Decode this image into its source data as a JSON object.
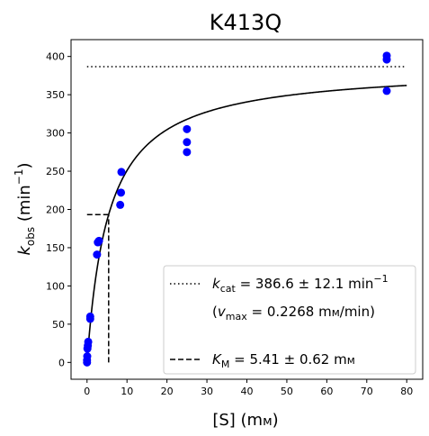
{
  "chart_data": {
    "type": "scatter",
    "title": "K413Q",
    "xlabel_main": "[S] (m",
    "xlabel_unit": "м",
    "xlabel_close": ")",
    "ylabel_k": "k",
    "ylabel_sub": "obs",
    "ylabel_rest": " (min",
    "ylabel_sup": "−1",
    "ylabel_close": ")",
    "xlim": [
      -4,
      84
    ],
    "ylim": [
      -22,
      422
    ],
    "x_ticks": [
      0,
      10,
      20,
      30,
      40,
      50,
      60,
      70,
      80
    ],
    "y_ticks": [
      0,
      50,
      100,
      150,
      200,
      250,
      300,
      350,
      400
    ],
    "grid": false,
    "legend_position": "lower-right",
    "colors": {
      "points": "#0000ff",
      "lines": "#000000"
    },
    "series": [
      {
        "type": "scatter",
        "x": [
          0,
          0,
          0.05,
          0.1,
          0.2,
          0.3,
          0.8,
          0.8,
          2.5,
          2.7,
          3.0,
          8.3,
          8.5,
          8.6,
          25,
          25,
          25,
          75,
          75,
          75
        ],
        "y": [
          0,
          3,
          8,
          18,
          22,
          27,
          57,
          60,
          141,
          157,
          159,
          206,
          222,
          249,
          275,
          288,
          305,
          355,
          396,
          401
        ]
      },
      {
        "type": "fit",
        "kcat": 386.6,
        "km": 5.41
      }
    ],
    "kcat_line": {
      "x_from": 0,
      "x_to": 80,
      "y": 386.6
    },
    "km_line": {
      "x": 5.41,
      "y": 193.3
    },
    "legend": {
      "kcat_k": "k",
      "kcat_sub": "cat",
      "kcat_value": " = 386.6 ± 12.1 min",
      "kcat_sup": "−1",
      "vmax_open": "(",
      "vmax_v": "v",
      "vmax_sub": "max",
      "vmax_value": " = 0.2268 m",
      "vmax_unit": "м",
      "vmax_tail": "/min)",
      "km_k": "K",
      "km_sub": "M",
      "km_value": " = 5.41 ± 0.62 m",
      "km_unit": "м"
    }
  }
}
